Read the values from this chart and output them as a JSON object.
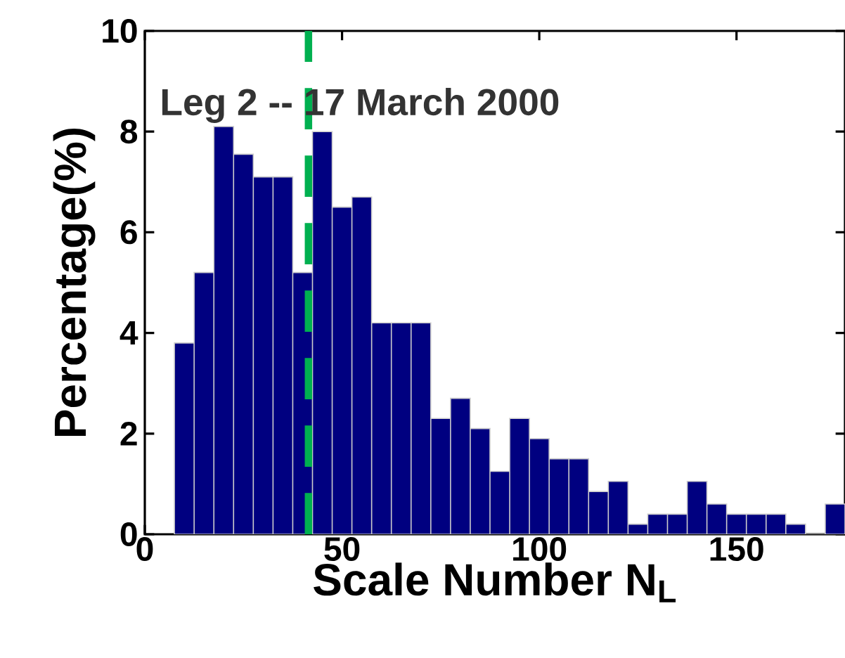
{
  "chart_data": {
    "type": "histogram",
    "xlabel": "Scale Number N$_{L}$",
    "ylabel": "Percentage(%)",
    "annotations": [
      "Leg 2 -- 17 March 2000"
    ],
    "bins": [
      7.5,
      12.5,
      17.5,
      22.5,
      27.5,
      32.5,
      37.5,
      42.5,
      47.5,
      52.5,
      57.5,
      62.5,
      67.5,
      72.5,
      77.5,
      82.5,
      87.5,
      92.5,
      97.5,
      102.5,
      107.5,
      112.5,
      117.5,
      122.5,
      127.5,
      132.5,
      137.5,
      142.5,
      147.5,
      152.5,
      157.5,
      162.5,
      167.5,
      172.5,
      177.5
    ],
    "values": [
      3.8,
      5.2,
      8.1,
      7.55,
      7.1,
      7.1,
      5.2,
      8.0,
      6.5,
      6.7,
      4.2,
      4.2,
      4.2,
      2.3,
      2.7,
      2.1,
      1.25,
      2.3,
      1.9,
      1.5,
      1.5,
      0.85,
      1.05,
      0.2,
      0.4,
      0.4,
      1.05,
      0.6,
      0.4,
      0.4,
      0.4,
      0.2,
      0,
      0.6
    ],
    "color": "#000080",
    "xlim": [
      0,
      177.5
    ],
    "ylim": [
      0,
      10
    ],
    "xticks": [
      0,
      50,
      100,
      150
    ],
    "yticks": [
      0,
      2,
      4,
      6,
      8,
      10
    ],
    "ref_lines": [
      {
        "axis": "x",
        "value": 41.5,
        "color": "#00b050",
        "line_style": "dashed"
      }
    ],
    "grid": false
  }
}
